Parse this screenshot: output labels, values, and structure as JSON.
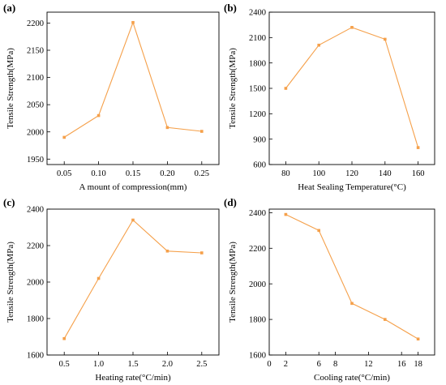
{
  "chart_data": [
    {
      "type": "line",
      "panel_label": "(a)",
      "xlabel": "A mount of compression(mm)",
      "ylabel": "Tensile Strength(MPa)",
      "x": [
        0.05,
        0.1,
        0.15,
        0.2,
        0.25
      ],
      "x_ticks": [
        "0.05",
        "0.10",
        "0.15",
        "0.20",
        "0.25"
      ],
      "xlim": [
        0.025,
        0.275
      ],
      "y_ticks": [
        "1950",
        "2000",
        "2050",
        "2100",
        "2150",
        "2200"
      ],
      "ylim": [
        1940,
        2220
      ],
      "series": [
        {
          "values": [
            1990,
            2030,
            2201,
            2008,
            2001
          ]
        }
      ],
      "color": "#F5A04A"
    },
    {
      "type": "line",
      "panel_label": "(b)",
      "xlabel": "Heat Sealing Temperature(°C)",
      "ylabel": "Tensile Strength(MPa)",
      "x": [
        80,
        100,
        120,
        140,
        160
      ],
      "x_ticks": [
        "80",
        "100",
        "120",
        "140",
        "160"
      ],
      "xlim": [
        70,
        170
      ],
      "y_ticks": [
        "600",
        "900",
        "1200",
        "1500",
        "1800",
        "2100",
        "2400"
      ],
      "ylim": [
        600,
        2400
      ],
      "series": [
        {
          "values": [
            1500,
            2010,
            2220,
            2080,
            800
          ]
        }
      ],
      "color": "#F5A04A"
    },
    {
      "type": "line",
      "panel_label": "(c)",
      "xlabel": "Heating rate(°C/min)",
      "ylabel": "Tensile Strength(MPa)",
      "x": [
        0.5,
        1.0,
        1.5,
        2.0,
        2.5
      ],
      "x_ticks": [
        "0.5",
        "1.0",
        "1.5",
        "2.0",
        "2.5"
      ],
      "xlim": [
        0.25,
        2.75
      ],
      "y_ticks": [
        "1600",
        "1800",
        "2000",
        "2200",
        "2400"
      ],
      "ylim": [
        1600,
        2400
      ],
      "series": [
        {
          "values": [
            1690,
            2020,
            2340,
            2170,
            2160
          ]
        }
      ],
      "color": "#F5A04A"
    },
    {
      "type": "line",
      "panel_label": "(d)",
      "xlabel": "Cooling rate(°C/min)",
      "ylabel": "Tensile Strength(MPa)",
      "x": [
        2,
        6,
        10,
        14,
        18
      ],
      "x_ticks": [
        "0",
        "2",
        "6",
        "8",
        "12",
        "16",
        "18"
      ],
      "x_tick_values": [
        0,
        2,
        6,
        8,
        12,
        16,
        18
      ],
      "xlim": [
        0,
        20
      ],
      "y_ticks": [
        "1600",
        "1800",
        "2000",
        "2200",
        "2400"
      ],
      "ylim": [
        1600,
        2420
      ],
      "series": [
        {
          "values": [
            2390,
            2300,
            1890,
            1800,
            1690
          ]
        }
      ],
      "color": "#F5A04A"
    }
  ]
}
